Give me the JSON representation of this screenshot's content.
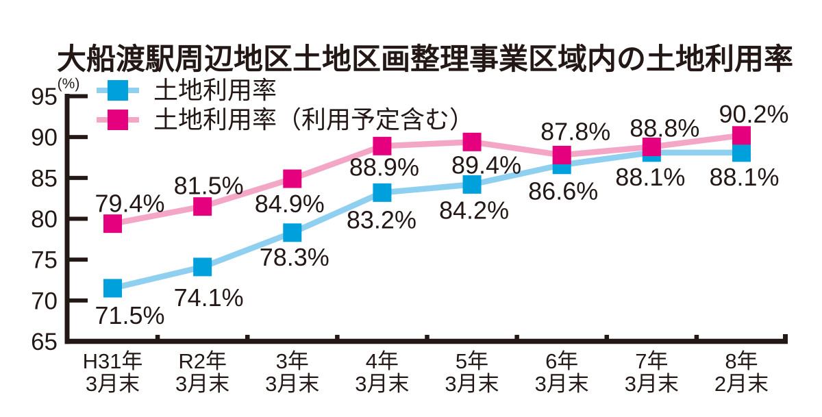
{
  "page": {
    "background": "#ffffff"
  },
  "chart_data": {
    "type": "line",
    "title": "大船渡駅周辺地区土地区画整理事業区域内の土地利用率",
    "grid": false,
    "legend_position": "top-left",
    "text_color": "#231815",
    "axis_color": "#231815",
    "y_axis": {
      "unit": "(%)",
      "min": 65,
      "max": 95,
      "tick_step": 5,
      "ticks": [
        65,
        70,
        75,
        80,
        85,
        90,
        95
      ]
    },
    "categories": [
      [
        "H31年",
        "3月末"
      ],
      [
        "R2年",
        "3月末"
      ],
      [
        "3年",
        "3月末"
      ],
      [
        "4年",
        "3月末"
      ],
      [
        "5年",
        "3月末"
      ],
      [
        "6年",
        "3月末"
      ],
      [
        "7年",
        "3月末"
      ],
      [
        "8年",
        "2月末"
      ]
    ],
    "series": [
      {
        "name": "土地利用率",
        "marker_color": "#00A0DC",
        "line_color": "#8FCFF0",
        "values": [
          71.5,
          74.1,
          78.3,
          83.2,
          84.2,
          86.6,
          88.1,
          88.1
        ],
        "data_labels": [
          "71.5%",
          "74.1%",
          "78.3%",
          "83.2%",
          "84.2%",
          "86.6%",
          "88.1%",
          "88.1%"
        ],
        "label_side": [
          "below",
          "below",
          "below",
          "below",
          "below",
          "below",
          "below",
          "below"
        ]
      },
      {
        "name": "土地利用率（利用予定含む）",
        "marker_color": "#E5007E",
        "line_color": "#F3A6C6",
        "values": [
          79.4,
          81.5,
          84.9,
          88.9,
          89.4,
          87.8,
          88.8,
          90.2
        ],
        "data_labels": [
          "79.4%",
          "81.5%",
          "84.9%",
          "88.9%",
          "89.4%",
          "87.8%",
          "88.8%",
          "90.2%"
        ],
        "label_side": [
          "above",
          "above",
          "below",
          "below",
          "below",
          "above",
          "above",
          "above"
        ]
      }
    ]
  }
}
